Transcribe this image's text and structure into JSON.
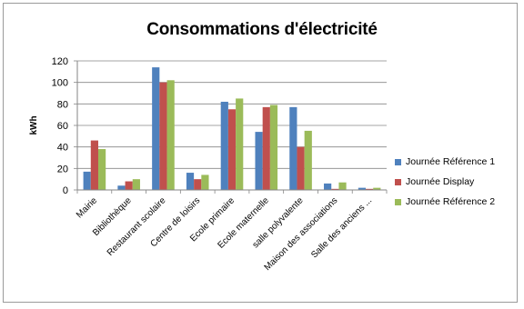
{
  "chart_data": {
    "type": "bar",
    "title": "Consommations d'électricité",
    "xlabel": "",
    "ylabel": "kWh",
    "ylim": [
      0,
      120
    ],
    "yticks": [
      0,
      20,
      40,
      60,
      80,
      100,
      120
    ],
    "grid": true,
    "legend_position": "right",
    "categories": [
      "Mairie",
      "Bibliothèque",
      "Restaurant scolaire",
      "Centre de loisirs",
      "Ecole primaire",
      "Ecole maternelle",
      "salle polyvalente",
      "Maison des associations",
      "Salle des anciens ..."
    ],
    "series": [
      {
        "name": "Journée Référence 1",
        "color": "#4f81bd",
        "values": [
          17,
          4,
          114,
          16,
          82,
          54,
          77,
          6,
          2
        ]
      },
      {
        "name": "Journée Display",
        "color": "#c0504d",
        "values": [
          46,
          8,
          100,
          10,
          75,
          77,
          40,
          1,
          1
        ]
      },
      {
        "name": "Journée Référence 2",
        "color": "#9bbb59",
        "values": [
          38,
          10,
          102,
          14,
          85,
          79,
          55,
          7,
          2
        ]
      }
    ]
  }
}
